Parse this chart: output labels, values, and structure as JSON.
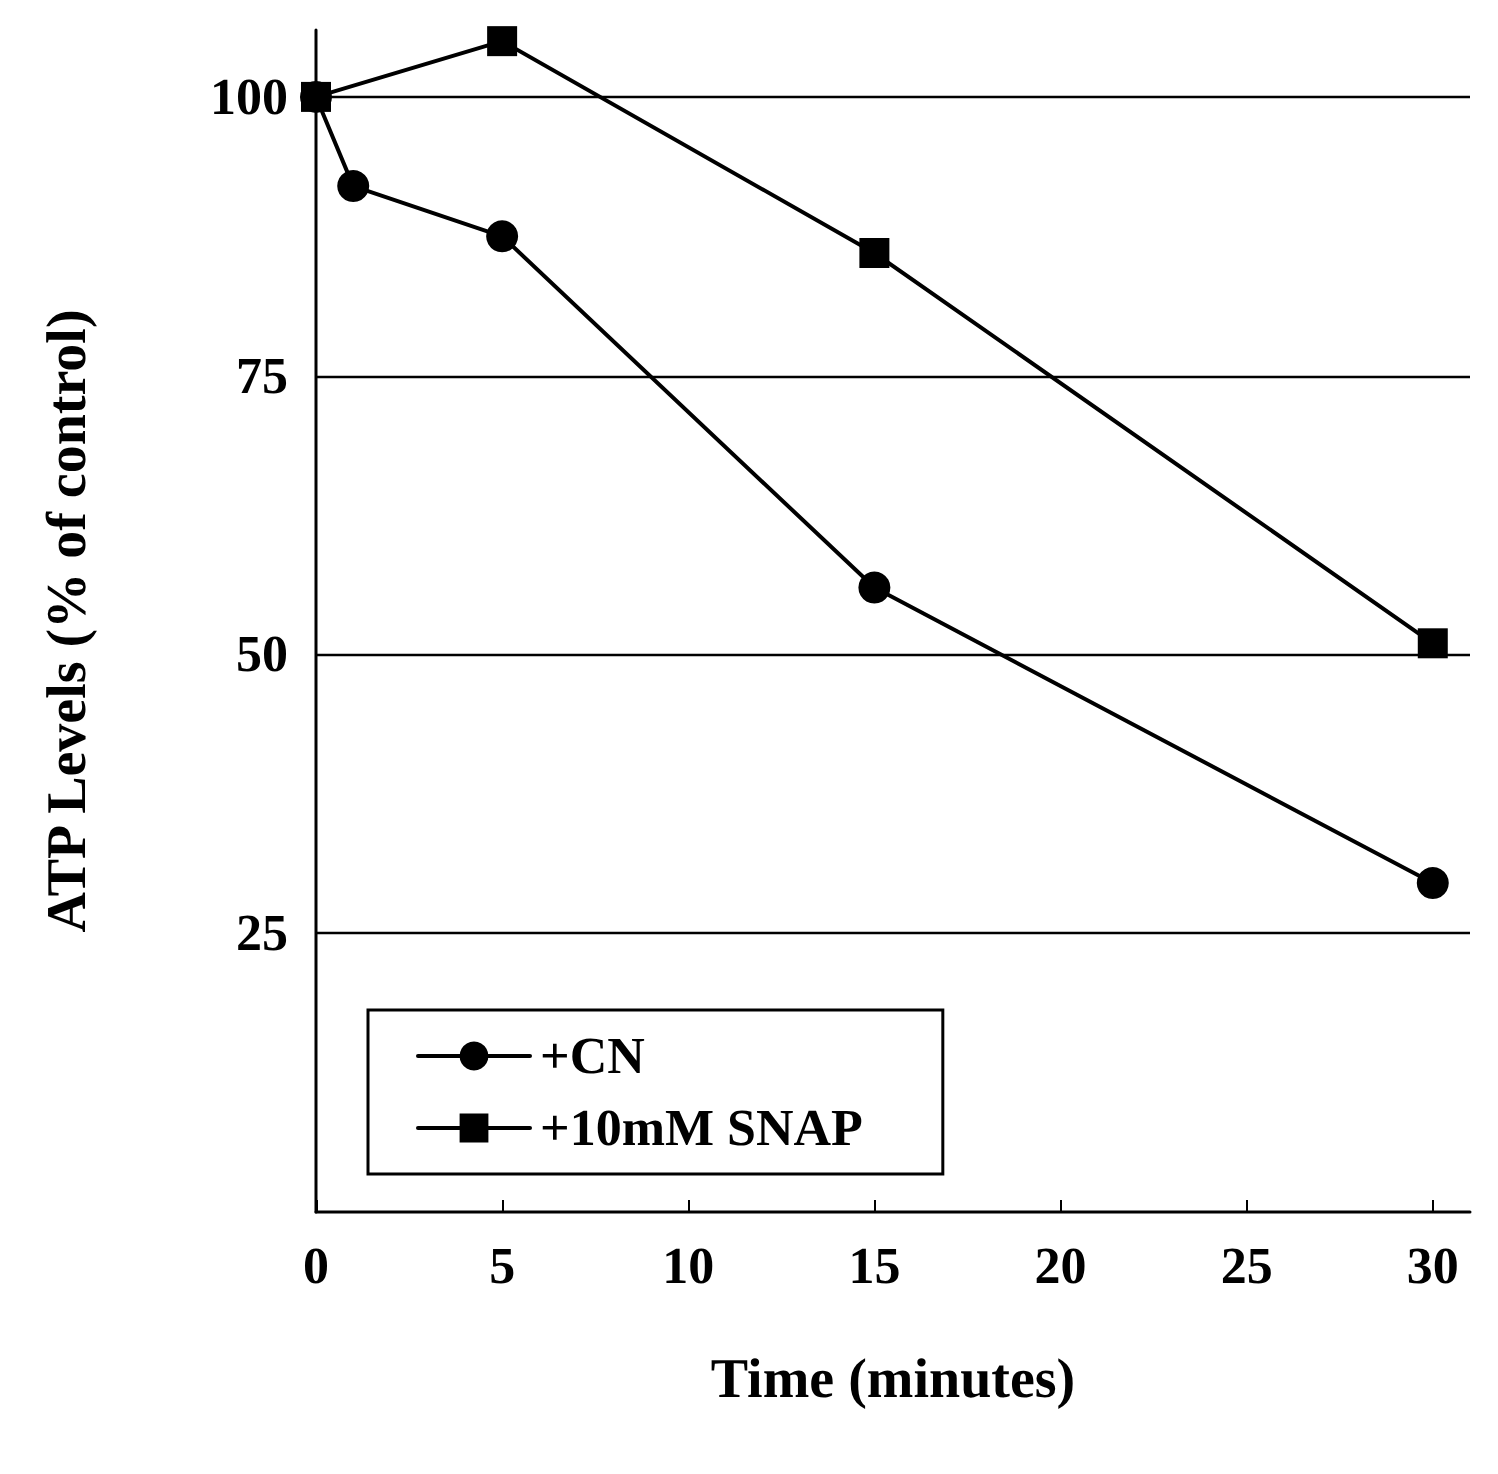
{
  "chart_data": {
    "type": "line",
    "xlabel": "Time (minutes)",
    "ylabel": "ATP Levels (% of control)",
    "xlim": [
      0,
      31
    ],
    "xticks": [
      0,
      5,
      10,
      15,
      20,
      25,
      30
    ],
    "ylim": [
      0,
      106
    ],
    "yticks": [
      25,
      50,
      75,
      100
    ],
    "grid": "y",
    "legend": "bottom left",
    "line_style": "solid",
    "series": [
      {
        "name": "+CN",
        "color": "#000000",
        "marker": "circle",
        "x": [
          0,
          1,
          5,
          15,
          30
        ],
        "values": [
          100,
          92,
          87.5,
          56,
          29.5
        ]
      },
      {
        "name": "+10mM SNAP",
        "color": "#000000",
        "marker": "square",
        "x": [
          0,
          5,
          15,
          30
        ],
        "values": [
          100,
          105,
          86,
          51
        ]
      }
    ]
  }
}
